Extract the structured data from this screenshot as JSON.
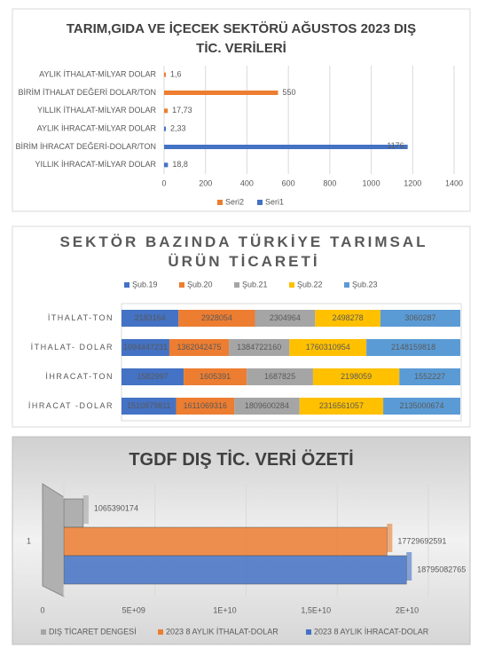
{
  "chart_data": [
    {
      "type": "bar",
      "orientation": "horizontal",
      "title": "TARIM,GIDA VE İÇECEK SEKTÖRÜ AĞUSTOS 2023 DIŞ TİC. VERİLERİ",
      "categories": [
        "AYLIK İTHALAT-MİLYAR DOLAR",
        "BİRİM İTHALAT DEĞERİ DOLAR/TON",
        "YILLIK İTHALAT-MİLYAR DOLAR",
        "AYLIK İHRACAT-MİLYAR DOLAR",
        "BİRİM İHRACAT DEĞERİ-DOLAR/TON",
        "YILLIK İHRACAT-MİLYAR DOLAR"
      ],
      "series": [
        {
          "name": "Seri2",
          "color": "#ed7d31",
          "values": [
            1.6,
            550,
            17.73,
            null,
            null,
            null
          ],
          "value_labels": [
            "1,6",
            "550",
            "17,73",
            null,
            null,
            null
          ]
        },
        {
          "name": "Seri1",
          "color": "#4472c4",
          "values": [
            null,
            null,
            null,
            2.33,
            1176,
            18.8
          ],
          "value_labels": [
            null,
            null,
            null,
            "2,33",
            "1176",
            "18,8"
          ]
        }
      ],
      "xlim": [
        0,
        1400
      ],
      "xticks": [
        0,
        200,
        400,
        600,
        800,
        1000,
        1200,
        1400
      ],
      "grid": true,
      "legend": "bottom"
    },
    {
      "type": "bar",
      "orientation": "horizontal",
      "stacked": "percent",
      "title": "SEKTÖR BAZINDA TÜRKİYE TARIMSAL ÜRÜN TİCARETİ",
      "categories": [
        "İTHALAT-TON",
        "İTHALAT- DOLAR",
        "İHRACAT-TON",
        "İHRACAT -DOLAR"
      ],
      "series": [
        {
          "name": "Şub.19",
          "color": "#4472c4",
          "values": [
            2183164,
            1094447231,
            1582997,
            1510879811
          ]
        },
        {
          "name": "Şub.20",
          "color": "#ed7d31",
          "values": [
            2928054,
            1362042475,
            1605391,
            1611069316
          ]
        },
        {
          "name": "Şub.21",
          "color": "#a5a5a5",
          "values": [
            2304964,
            1384722160,
            1687825,
            1809600284
          ]
        },
        {
          "name": "Şub.22",
          "color": "#ffc000",
          "values": [
            2498278,
            1760310954,
            2198059,
            2316561057
          ]
        },
        {
          "name": "Şub.23",
          "color": "#5b9bd5",
          "values": [
            3060287,
            2148159818,
            1552227,
            2135000674
          ]
        }
      ],
      "legend": "top"
    },
    {
      "type": "bar",
      "orientation": "horizontal",
      "title": "TGDF DIŞ TİC. VERİ ÖZETİ",
      "categories": [
        "1"
      ],
      "series": [
        {
          "name": "DIŞ TİCARET DENGESİ",
          "color": "#a5a5a5",
          "values": [
            1065390174
          ]
        },
        {
          "name": "2023 8 AYLIK İTHALAT-DOLAR",
          "color": "#ed7d31",
          "values": [
            17729692591
          ]
        },
        {
          "name": "2023 8 AYLIK İHRACAT-DOLAR",
          "color": "#4472c4",
          "values": [
            18795082765
          ]
        }
      ],
      "xlim": [
        0,
        20000000000
      ],
      "xticks": [
        0,
        {
          "value": 5000000000,
          "label": "5E+09"
        },
        {
          "value": 10000000000,
          "label": "1E+10"
        },
        {
          "value": 15000000000,
          "label": "1,5E+10"
        },
        {
          "value": 20000000000,
          "label": "2E+10"
        }
      ],
      "grid": true,
      "legend": "bottom"
    }
  ]
}
